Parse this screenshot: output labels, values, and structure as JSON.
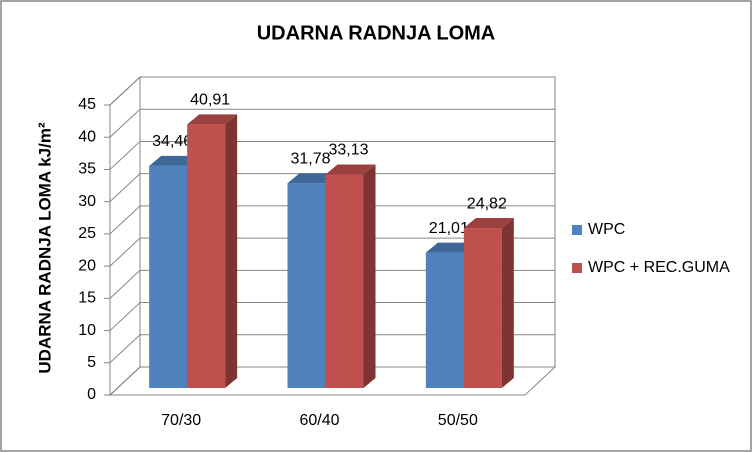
{
  "chart_data": {
    "type": "bar3d",
    "title": "UDARNA RADNJA LOMA",
    "y_label": "UDARNA RADNJA LOMA kJ/m²",
    "categories": [
      "70/30",
      "60/40",
      "50/50"
    ],
    "series": [
      {
        "name": "WPC",
        "color": "#4f81bd",
        "values": [
          34.46,
          31.78,
          21.01
        ],
        "value_labels": [
          "34,46",
          "31,78",
          "21,01"
        ]
      },
      {
        "name": "WPC + REC.GUMA",
        "color": "#c0504d",
        "values": [
          40.91,
          33.13,
          24.82
        ],
        "value_labels": [
          "40,91",
          "33,13",
          "24,82"
        ]
      }
    ],
    "ylim": [
      0,
      45
    ],
    "yticks": [
      0,
      5,
      10,
      15,
      20,
      25,
      30,
      35,
      40,
      45
    ],
    "grid": true,
    "legend": "right"
  }
}
